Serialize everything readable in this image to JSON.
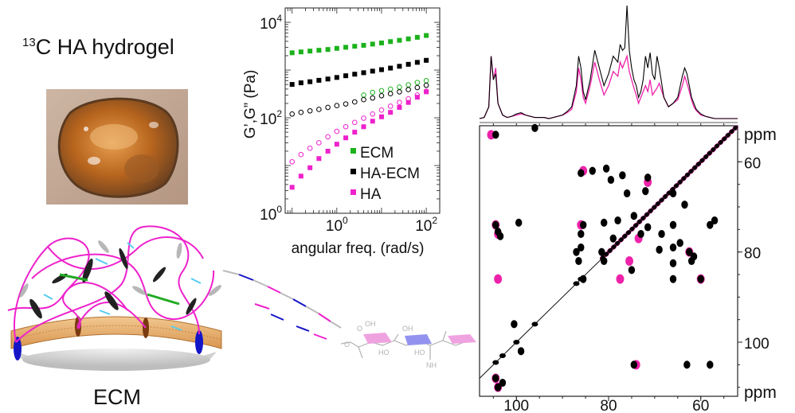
{
  "hydrogel": {
    "isotope_prefix": "13",
    "title": "C HA hydrogel"
  },
  "ecm_label": "ECM",
  "chart_data": [
    {
      "type": "scatter",
      "log_x": true,
      "log_y": true,
      "xlabel": "angular freq. (rad/s)",
      "ylabel": "G’,G” (Pa)",
      "xlim": [
        0.07,
        200
      ],
      "ylim": [
        1,
        20000
      ],
      "x_ticks": [
        {
          "value": 1,
          "base": "10",
          "exp": "0"
        },
        {
          "value": 100,
          "base": "10",
          "exp": "2"
        }
      ],
      "y_ticks": [
        {
          "value": 1,
          "base": "10",
          "exp": "0"
        },
        {
          "value": 100,
          "base": "10",
          "exp": "2"
        },
        {
          "value": 10000,
          "base": "10",
          "exp": "4"
        }
      ],
      "legend": [
        {
          "label": "ECM",
          "color": "#1bb21b"
        },
        {
          "label": "HA-ECM",
          "color": "#000000"
        },
        {
          "label": "HA",
          "color": "#ee22cc"
        }
      ],
      "series": [
        {
          "name": "ECM",
          "measure": "G'",
          "color": "#1bb21b",
          "filled": true,
          "x": [
            0.1,
            0.158,
            0.251,
            0.398,
            0.631,
            1,
            1.585,
            2.512,
            3.981,
            6.31,
            10,
            15.85,
            25.12,
            39.81,
            63.1,
            100
          ],
          "y": [
            2300,
            2400,
            2500,
            2600,
            2700,
            2850,
            3000,
            3150,
            3300,
            3500,
            3700,
            3950,
            4200,
            4500,
            4850,
            5300
          ]
        },
        {
          "name": "ECM",
          "measure": "G''",
          "color": "#1bb21b",
          "filled": false,
          "x": [
            3.981,
            6.31,
            10,
            15.85,
            25.12,
            39.81,
            63.1,
            100
          ],
          "y": [
            300,
            340,
            370,
            400,
            440,
            490,
            550,
            600
          ]
        },
        {
          "name": "HA-ECM",
          "measure": "G'",
          "color": "#000000",
          "filled": true,
          "x": [
            0.1,
            0.158,
            0.251,
            0.398,
            0.631,
            1,
            1.585,
            2.512,
            3.981,
            6.31,
            10,
            15.85,
            25.12,
            39.81,
            63.1,
            100
          ],
          "y": [
            500,
            540,
            570,
            610,
            650,
            700,
            760,
            820,
            880,
            950,
            1020,
            1100,
            1200,
            1320,
            1450,
            1600
          ]
        },
        {
          "name": "HA-ECM",
          "measure": "G''",
          "color": "#000000",
          "filled": false,
          "x": [
            0.1,
            0.158,
            0.251,
            0.398,
            0.631,
            1,
            1.585,
            2.512,
            3.981,
            6.31,
            10,
            15.85,
            25.12,
            39.81,
            63.1,
            100
          ],
          "y": [
            120,
            130,
            140,
            150,
            165,
            180,
            195,
            215,
            240,
            260,
            290,
            320,
            350,
            390,
            430,
            480
          ]
        },
        {
          "name": "HA",
          "measure": "G'",
          "color": "#ee22cc",
          "filled": true,
          "x": [
            0.1,
            0.158,
            0.251,
            0.398,
            0.631,
            1,
            1.585,
            2.512,
            3.981,
            6.31,
            10,
            15.85,
            25.12,
            39.81,
            63.1,
            100
          ],
          "y": [
            3.5,
            6,
            9,
            14,
            20,
            28,
            38,
            50,
            65,
            85,
            105,
            130,
            165,
            210,
            270,
            350
          ]
        },
        {
          "name": "HA",
          "measure": "G''",
          "color": "#ee22cc",
          "filled": false,
          "x": [
            0.1,
            0.158,
            0.251,
            0.398,
            0.631,
            1,
            1.585,
            2.512,
            3.981,
            6.31,
            10,
            15.85,
            25.12,
            39.81,
            63.1,
            100
          ],
          "y": [
            12,
            17,
            23,
            30,
            40,
            52,
            65,
            80,
            98,
            120,
            145,
            175,
            210,
            250,
            300,
            360
          ]
        }
      ]
    },
    {
      "type": "scatter",
      "kind": "2D 13C-13C NMR correlation spectrum with 1D projection",
      "xlabel": "ppm",
      "ylabel": "ppm",
      "xlim": [
        108,
        52
      ],
      "ylim": [
        52,
        112
      ],
      "x_ticks": [
        100,
        80,
        60
      ],
      "y_ticks": [
        60,
        80,
        100
      ],
      "series": [
        {
          "name": "pink",
          "color": "#ee22aa",
          "points": [
            [
              105.5,
              54
            ],
            [
              85.5,
              62
            ],
            [
              86,
              74
            ],
            [
              71.5,
              64.5
            ],
            [
              73.5,
              77
            ],
            [
              75.5,
              82
            ],
            [
              77.5,
              86
            ],
            [
              74,
              105
            ],
            [
              62.5,
              80
            ],
            [
              60,
              86
            ],
            [
              104.5,
              74
            ],
            [
              104,
              76
            ],
            [
              104,
              86
            ],
            [
              104.5,
              108
            ],
            [
              104,
              110
            ]
          ]
        },
        {
          "name": "black",
          "color": "#000000",
          "points": [
            [
              104.5,
              54
            ],
            [
              96,
              52.5
            ],
            [
              99.5,
              73.5
            ],
            [
              104.5,
              74
            ],
            [
              104,
              75.5
            ],
            [
              103.5,
              76.5
            ],
            [
              86,
              62.5
            ],
            [
              83.5,
              62
            ],
            [
              80.5,
              61.5
            ],
            [
              79.5,
              64
            ],
            [
              76,
              67
            ],
            [
              71.5,
              63.5
            ],
            [
              72,
              66.5
            ],
            [
              66,
              67
            ],
            [
              63.5,
              69.5
            ],
            [
              57,
              73
            ],
            [
              58,
              74
            ],
            [
              73,
              76
            ],
            [
              71.5,
              74.5
            ],
            [
              68.5,
              76
            ],
            [
              69,
              79.5
            ],
            [
              66,
              79
            ],
            [
              64.5,
              78
            ],
            [
              62.5,
              80
            ],
            [
              61.5,
              81
            ],
            [
              60,
              86
            ],
            [
              62,
              82
            ],
            [
              66,
              82.5
            ],
            [
              66,
              86
            ],
            [
              81,
              73.5
            ],
            [
              78,
              73
            ],
            [
              74.5,
              72
            ],
            [
              79,
              77
            ],
            [
              81.5,
              80
            ],
            [
              85.5,
              74
            ],
            [
              86,
              76
            ],
            [
              86,
              79
            ],
            [
              87,
              80
            ],
            [
              81,
              82
            ],
            [
              85.5,
              86
            ],
            [
              86.5,
              82
            ],
            [
              66,
              74
            ],
            [
              77,
              63
            ],
            [
              75,
              84
            ],
            [
              74.5,
              105
            ],
            [
              63,
              105
            ],
            [
              58,
              105
            ],
            [
              100.5,
              96
            ],
            [
              104.5,
              108
            ],
            [
              104,
              110
            ],
            [
              103,
              109
            ],
            [
              99,
              102
            ]
          ]
        }
      ]
    }
  ],
  "nmr_1d": {
    "x": [
      108,
      107,
      106,
      105.5,
      105,
      104.5,
      104,
      103,
      102,
      101,
      100,
      99,
      98,
      97,
      96,
      95,
      94,
      93,
      92,
      91,
      90,
      89,
      88,
      87,
      86.5,
      86,
      85.5,
      85,
      84,
      83,
      82,
      81,
      80,
      79,
      78,
      77.5,
      77,
      76.5,
      76,
      75.5,
      75,
      74.5,
      74,
      73.5,
      73,
      72.5,
      72,
      71.5,
      71,
      70.5,
      70,
      69.5,
      69,
      68,
      67,
      66,
      65,
      64,
      63.5,
      63,
      62.5,
      62,
      61.5,
      61,
      60.5,
      60,
      59,
      58,
      57,
      56,
      55,
      54,
      53,
      52
    ],
    "black": [
      0.02,
      0.03,
      0.12,
      0.55,
      0.35,
      0.4,
      0.15,
      0.05,
      0.03,
      0.04,
      0.06,
      0.07,
      0.05,
      0.04,
      0.03,
      0.03,
      0.03,
      0.02,
      0.03,
      0.04,
      0.05,
      0.08,
      0.12,
      0.3,
      0.55,
      0.45,
      0.25,
      0.18,
      0.35,
      0.6,
      0.45,
      0.3,
      0.4,
      0.55,
      0.5,
      0.65,
      0.6,
      0.62,
      0.98,
      0.6,
      0.45,
      0.35,
      0.3,
      0.2,
      0.25,
      0.35,
      0.55,
      0.45,
      0.58,
      0.4,
      0.35,
      0.55,
      0.45,
      0.2,
      0.12,
      0.15,
      0.2,
      0.38,
      0.45,
      0.4,
      0.3,
      0.2,
      0.15,
      0.1,
      0.08,
      0.06,
      0.04,
      0.03,
      0.02,
      0.02,
      0.02,
      0.02,
      0.02,
      0.02
    ],
    "pink": [
      0.02,
      0.03,
      0.12,
      0.55,
      0.35,
      0.45,
      0.15,
      0.05,
      0.03,
      0.04,
      0.05,
      0.06,
      0.05,
      0.04,
      0.03,
      0.03,
      0.03,
      0.02,
      0.03,
      0.04,
      0.05,
      0.07,
      0.1,
      0.25,
      0.45,
      0.35,
      0.2,
      0.15,
      0.3,
      0.5,
      0.35,
      0.22,
      0.3,
      0.42,
      0.38,
      0.5,
      0.45,
      0.5,
      0.55,
      0.42,
      0.35,
      0.28,
      0.22,
      0.15,
      0.2,
      0.25,
      0.3,
      0.25,
      0.35,
      0.22,
      0.25,
      0.28,
      0.32,
      0.2,
      0.12,
      0.15,
      0.18,
      0.3,
      0.38,
      0.32,
      0.25,
      0.18,
      0.12,
      0.09,
      0.07,
      0.05,
      0.04,
      0.03,
      0.02,
      0.02,
      0.02,
      0.02,
      0.02,
      0.02
    ]
  },
  "colors": {
    "magenta": "#ee22cc",
    "green": "#1bb21b",
    "sugar_pink": "#ee99dd",
    "sugar_blue": "#8888ee",
    "membrane": "#e2a055",
    "membrane_edge": "#b07030",
    "protein_blue": "#1515c8",
    "protein_brown": "#7a3a10",
    "fiber": "#222222",
    "crosslink_cyan": "#55ccee",
    "crosslink_green": "#22aa22"
  }
}
